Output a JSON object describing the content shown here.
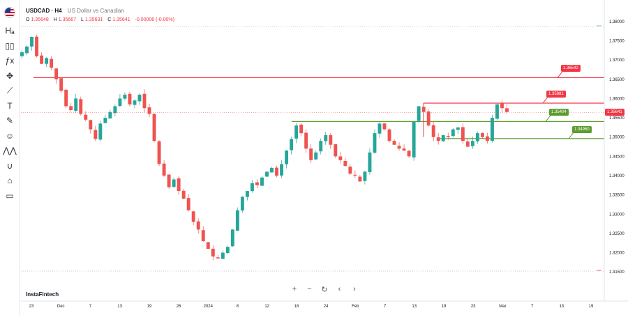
{
  "header": {
    "symbol": "USDCAD · H4",
    "description": "US Dollar vs Canadian",
    "ohlc": {
      "o_key": "O",
      "o": "1.35648",
      "h_key": "H",
      "h": "1.35667",
      "l_key": "L",
      "l": "1.35631",
      "c_key": "C",
      "c": "1.35641",
      "change": "-0.00006 (-0.00%)"
    }
  },
  "toolbar": {
    "flag": "us-flag-icon",
    "items": [
      {
        "name": "chart-type-icon",
        "glyph": "Hₐ"
      },
      {
        "name": "indicators-icon",
        "glyph": "▯▯"
      },
      {
        "name": "fx-icon",
        "glyph": "ƒx"
      },
      {
        "name": "crosshair-icon",
        "glyph": "✥"
      },
      {
        "name": "trend-line-icon",
        "glyph": "⟋"
      },
      {
        "name": "text-icon",
        "glyph": "T"
      },
      {
        "name": "brush-icon",
        "glyph": "✎"
      },
      {
        "name": "emoji-icon",
        "glyph": "☺"
      },
      {
        "name": "pattern-icon",
        "glyph": "⋀⋀"
      },
      {
        "name": "magnet-icon",
        "glyph": "∪"
      },
      {
        "name": "lock-icon",
        "glyph": "⌂"
      },
      {
        "name": "trash-icon",
        "glyph": "▭"
      }
    ]
  },
  "nav": {
    "zoom_in": "+",
    "zoom_out": "−",
    "reset": "↻",
    "back": "‹",
    "forward": "›"
  },
  "brand": "InstaFintech",
  "axis_marks": {
    "top": "ᴍᴀx",
    "bottom": "ᴍɪɴ"
  },
  "colors": {
    "up": "#26a69a",
    "down": "#ef5350",
    "resistance": "#f23645",
    "support": "#5d9c2f",
    "grid": "#f0f3fa"
  },
  "chart_data": {
    "type": "candlestick",
    "ylim": [
      1.3125,
      1.3825
    ],
    "yticks": [
      "1.38000",
      "1.37500",
      "1.37000",
      "1.36500",
      "1.36000",
      "1.35500",
      "1.35000",
      "1.34500",
      "1.34000",
      "1.33500",
      "1.33000",
      "1.32500",
      "1.32000",
      "1.31500"
    ],
    "xticks": [
      "23",
      "Dec",
      "7",
      "13",
      "19",
      "26",
      "2024",
      "8",
      "12",
      "18",
      "24",
      "Feb",
      "7",
      "13",
      "19",
      "23",
      "Mar",
      "7",
      "13",
      "19"
    ],
    "last_price": "1.35641",
    "levels": [
      {
        "name": "resistance-2",
        "value": 1.36542,
        "label": "1.36542",
        "color": "#f23645"
      },
      {
        "name": "resistance-1",
        "value": 1.35881,
        "label": "1.35881",
        "color": "#f23645"
      },
      {
        "name": "support-1",
        "value": 1.35404,
        "label": "1.35404",
        "color": "#5d9c2f"
      },
      {
        "name": "support-2",
        "value": 1.3496,
        "label": "1.34960",
        "color": "#5d9c2f"
      }
    ],
    "close_path": [
      1.372,
      1.3735,
      1.376,
      1.371,
      1.369,
      1.3705,
      1.368,
      1.365,
      1.362,
      1.358,
      1.357,
      1.36,
      1.356,
      1.3545,
      1.352,
      1.3495,
      1.3535,
      1.355,
      1.3565,
      1.358,
      1.36,
      1.361,
      1.3585,
      1.3595,
      1.361,
      1.3575,
      1.356,
      1.349,
      1.343,
      1.34,
      1.337,
      1.339,
      1.336,
      1.334,
      1.331,
      1.328,
      1.326,
      1.323,
      1.321,
      1.319,
      1.3185,
      1.32,
      1.3215,
      1.326,
      1.331,
      1.3345,
      1.336,
      1.338,
      1.3375,
      1.3395,
      1.341,
      1.342,
      1.34,
      1.343,
      1.3465,
      1.3495,
      1.353,
      1.351,
      1.347,
      1.344,
      1.346,
      1.349,
      1.3505,
      1.348,
      1.345,
      1.344,
      1.3425,
      1.3405,
      1.34,
      1.3385,
      1.341,
      1.346,
      1.351,
      1.3535,
      1.352,
      1.349,
      1.348,
      1.347,
      1.3465,
      1.345,
      1.354,
      1.358,
      1.3565,
      1.353,
      1.35,
      1.349,
      1.3505,
      1.35,
      1.352,
      1.3525,
      1.349,
      1.3475,
      1.349,
      1.351,
      1.35,
      1.349,
      1.355,
      1.3585,
      1.3575,
      1.3565
    ]
  }
}
